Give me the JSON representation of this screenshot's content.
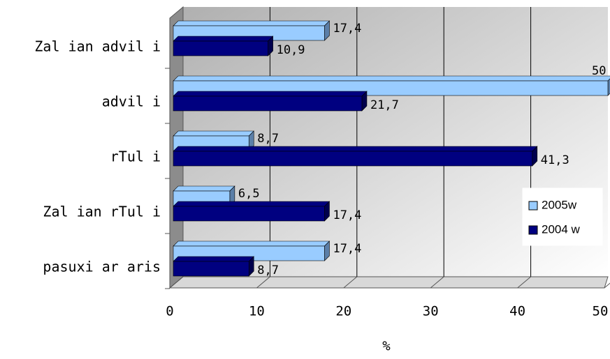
{
  "chart_data": {
    "type": "bar",
    "orientation": "horizontal",
    "three_d": true,
    "categories": [
      "Zal ian advil i",
      "advil i",
      "rTul i",
      "Zal ian rTul i",
      "pasuxi ar aris"
    ],
    "series": [
      {
        "name": "2005w",
        "color": "#99ccff",
        "values": [
          17.4,
          50,
          8.7,
          6.5,
          17.4
        ],
        "value_labels": [
          "17,4",
          "50",
          "8,7",
          "6,5",
          "17,4"
        ]
      },
      {
        "name": "2004 w",
        "color": "#000080",
        "values": [
          10.9,
          21.7,
          41.3,
          17.4,
          8.7
        ],
        "value_labels": [
          "10,9",
          "21,7",
          "41,3",
          "17,4",
          "8,7"
        ]
      }
    ],
    "xlim": [
      0,
      50
    ],
    "xticks": [
      0,
      10,
      20,
      30,
      40,
      50
    ],
    "xlabel": "%",
    "grid": true,
    "legend": "right"
  }
}
